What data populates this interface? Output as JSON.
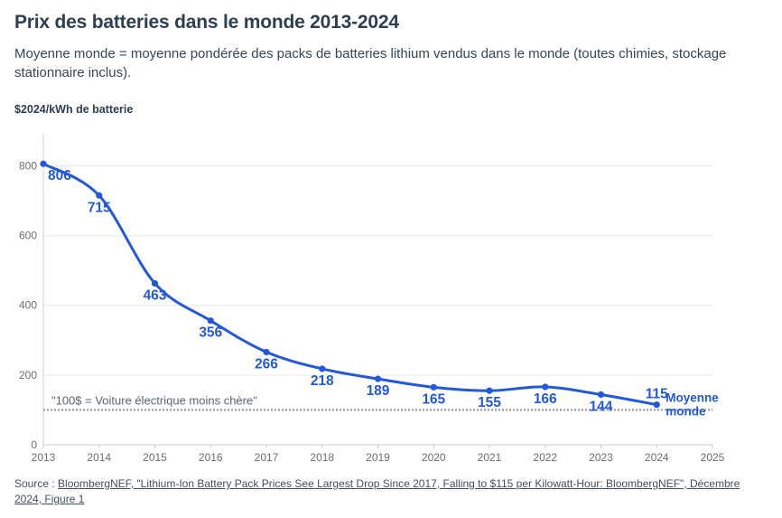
{
  "header": {
    "title": "Prix des batteries dans le monde 2013-2024",
    "subtitle": "Moyenne monde = moyenne pondérée des packs de batteries lithium vendus dans le monde (toutes chimies, stockage stationnaire inclus)."
  },
  "chart_data": {
    "type": "line",
    "title": "Prix des batteries dans le monde 2013-2024",
    "subtitle": "Moyenne monde = moyenne pondérée des packs de batteries lithium vendus dans le monde (toutes chimies, stockage stationnaire inclus).",
    "ylabel": "$2024/kWh de batterie",
    "xlabel": "",
    "x": [
      2013,
      2014,
      2015,
      2016,
      2017,
      2018,
      2019,
      2020,
      2021,
      2022,
      2023,
      2024
    ],
    "series": [
      {
        "name": "Moyenne monde",
        "values": [
          806,
          715,
          463,
          356,
          266,
          218,
          189,
          165,
          155,
          166,
          144,
          115
        ]
      }
    ],
    "series_label_lines": [
      "Moyenne",
      "monde"
    ],
    "x_ticks": [
      2013,
      2014,
      2015,
      2016,
      2017,
      2018,
      2019,
      2020,
      2021,
      2022,
      2023,
      2024,
      2025
    ],
    "y_ticks": [
      0,
      200,
      400,
      600,
      800
    ],
    "xlim": [
      2013,
      2025
    ],
    "ylim": [
      0,
      892
    ],
    "grid": true,
    "legend_position": "end-of-line",
    "reference_line": {
      "value": 100,
      "style": "dotted",
      "label": "\"100$ = Voiture électrique moins chère\""
    },
    "point_labels_shown": true
  },
  "source": {
    "prefix": "Source : ",
    "link_text": "BloombergNEF, \"Lithium-Ion Battery Pack Prices See Largest Drop Since 2017, Falling to $115 per Kilowatt-Hour: BloombergNEF\", Décembre 2024, Figure 1"
  },
  "colors": {
    "line": "#2359d8",
    "point_label": "#2359d8",
    "title": "#2d4053",
    "subtitle": "#33475a",
    "axis_text": "#6e6e6e",
    "gridline": "#e8e8e8",
    "axis_line": "#c9cdd2",
    "reference_line": "#8e949c",
    "annotation_text": "#5a6671",
    "source_text": "#42505d"
  }
}
